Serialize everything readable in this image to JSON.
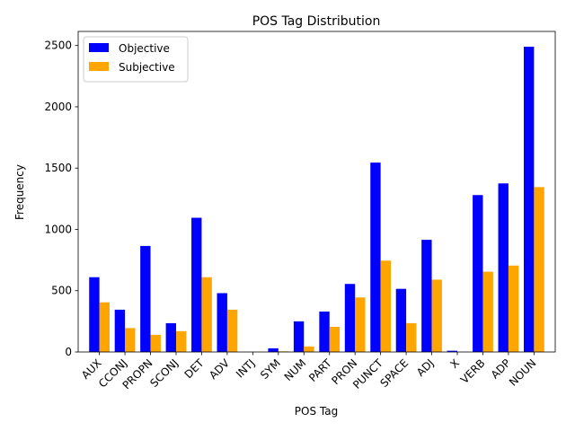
{
  "chart_data": {
    "type": "bar",
    "title": "POS Tag Distribution",
    "xlabel": "POS Tag",
    "ylabel": "Frequency",
    "categories": [
      "AUX",
      "CCONJ",
      "PROPN",
      "SCONJ",
      "DET",
      "ADV",
      "INTJ",
      "SYM",
      "NUM",
      "PART",
      "PRON",
      "PUNCT",
      "SPACE",
      "ADJ",
      "X",
      "VERB",
      "ADP",
      "NOUN"
    ],
    "series": [
      {
        "name": "Objective",
        "color": "#0000ff",
        "values": [
          610,
          345,
          865,
          235,
          1095,
          480,
          0,
          30,
          250,
          330,
          555,
          1545,
          515,
          915,
          10,
          1280,
          1375,
          2490
        ]
      },
      {
        "name": "Subjective",
        "color": "#ffa500",
        "values": [
          405,
          195,
          140,
          170,
          610,
          345,
          0,
          5,
          45,
          205,
          445,
          745,
          235,
          590,
          0,
          655,
          705,
          1345
        ]
      }
    ],
    "ylim": [
      0,
      2615
    ],
    "yticks": [
      0,
      500,
      1000,
      1500,
      2000,
      2500
    ],
    "legend_position": "top-left",
    "grid": false
  }
}
